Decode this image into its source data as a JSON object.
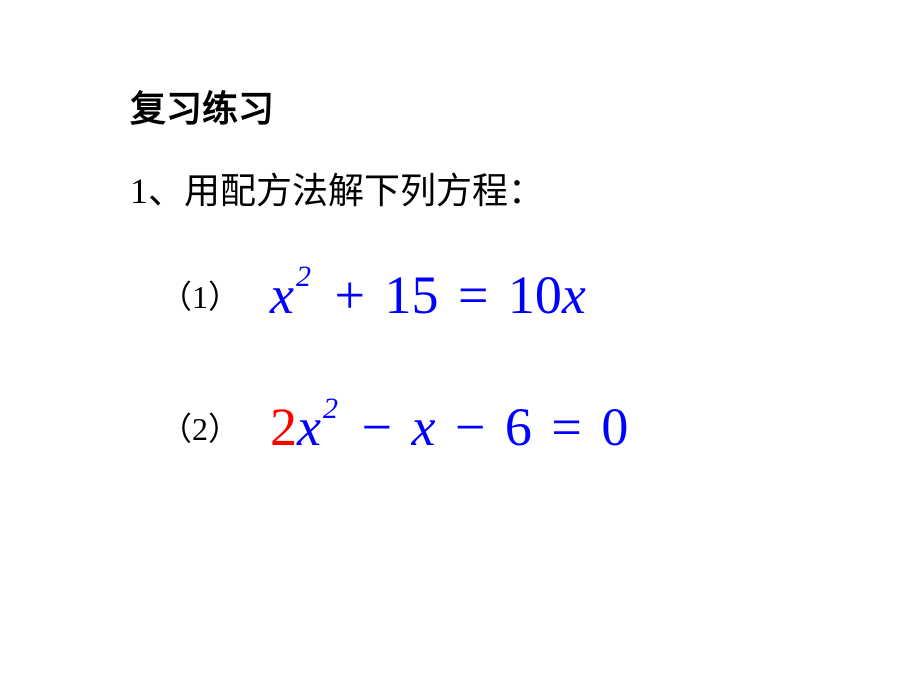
{
  "title": "复习练习",
  "instruction": "1、用配方法解下列方程：",
  "problems": [
    {
      "label": "（1）",
      "equation": {
        "terms": [
          {
            "text": "x",
            "color": "#0000ff",
            "italic": true
          },
          {
            "text": "2",
            "color": "#0000ff",
            "sup": true
          },
          {
            "text": " + ",
            "color": "#0000ff",
            "op": true
          },
          {
            "text": "15",
            "color": "#0000ff",
            "num": true
          },
          {
            "text": " = ",
            "color": "#0000ff",
            "op": true
          },
          {
            "text": "10",
            "color": "#0000ff",
            "num": true
          },
          {
            "text": "x",
            "color": "#0000ff",
            "italic": true
          }
        ]
      }
    },
    {
      "label": "（2）",
      "equation": {
        "terms": [
          {
            "text": "2",
            "color": "#ff0000",
            "num": true
          },
          {
            "text": "x",
            "color": "#0000ff",
            "italic": true
          },
          {
            "text": "2",
            "color": "#0000ff",
            "sup": true
          },
          {
            "text": " − ",
            "color": "#0000ff",
            "op": true
          },
          {
            "text": "x",
            "color": "#0000ff",
            "italic": true
          },
          {
            "text": " − ",
            "color": "#0000ff",
            "op": true
          },
          {
            "text": "6",
            "color": "#0000ff",
            "num": true
          },
          {
            "text": " = ",
            "color": "#0000ff",
            "op": true
          },
          {
            "text": "0",
            "color": "#0000ff",
            "num": true
          }
        ]
      }
    }
  ],
  "colors": {
    "text": "#000000",
    "blue": "#0000ff",
    "red": "#ff0000",
    "background": "#ffffff"
  },
  "fonts": {
    "heading_size": 36,
    "label_size": 32,
    "equation_size": 54,
    "sup_size": 30
  }
}
